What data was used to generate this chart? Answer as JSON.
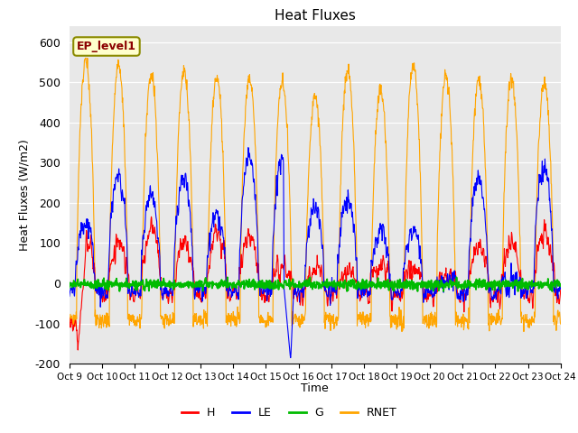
{
  "title": "Heat Fluxes",
  "ylabel": "Heat Fluxes (W/m2)",
  "xlabel": "Time",
  "annotation": "EP_level1",
  "ylim": [
    -200,
    640
  ],
  "yticks": [
    -200,
    -100,
    0,
    100,
    200,
    300,
    400,
    500,
    600
  ],
  "xtick_labels": [
    "Oct 9",
    "Oct 10",
    "Oct 11",
    "Oct 12",
    "Oct 13",
    "Oct 14",
    "Oct 15",
    "Oct 16",
    "Oct 17",
    "Oct 18",
    "Oct 19",
    "Oct 20",
    "Oct 21",
    "Oct 22",
    "Oct 23",
    "Oct 24"
  ],
  "colors": {
    "H": "#ff0000",
    "LE": "#0000ff",
    "G": "#00bb00",
    "RNET": "#ffa500"
  },
  "bg_color": "#e8e8e8",
  "fig_bg": "#ffffff",
  "linewidth": 0.8
}
